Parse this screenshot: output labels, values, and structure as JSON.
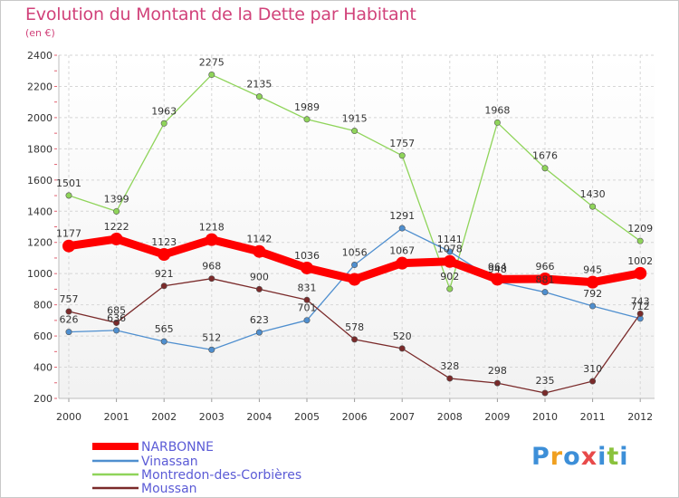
{
  "header": {
    "title": "Evolution du Montant de la Dette par Habitant",
    "subtitle": "(en €)"
  },
  "logo": {
    "text": "Proxiti",
    "letters": [
      "P",
      "r",
      "o",
      "x",
      "i",
      "t",
      "i"
    ],
    "colors": [
      "#3d8fd8",
      "#f0a020",
      "#3d8fd8",
      "#e84a4a",
      "#3d8fd8",
      "#8ac23c",
      "#3d8fd8"
    ]
  },
  "chart_data": {
    "type": "line",
    "title": "Evolution du Montant de la Dette par Habitant",
    "subtitle": "(en €)",
    "xlabel": "",
    "ylabel": "",
    "x": [
      "2000",
      "2001",
      "2002",
      "2003",
      "2004",
      "2005",
      "2006",
      "2007",
      "2008",
      "2009",
      "2010",
      "2011",
      "2012"
    ],
    "ylim": [
      200,
      2400
    ],
    "yticks": [
      200,
      400,
      600,
      800,
      1000,
      1200,
      1400,
      1600,
      1800,
      2000,
      2200,
      2400
    ],
    "grid": true,
    "legend_position": "bottom-left",
    "series": [
      {
        "name": "NARBONNE",
        "color": "#ff0000",
        "values": [
          1177,
          1222,
          1123,
          1218,
          1142,
          1036,
          963,
          1067,
          1078,
          964,
          966,
          945,
          1002
        ],
        "labels": [
          "1177",
          "1222",
          "1123",
          "1218",
          "1142",
          "1036",
          "",
          "1067",
          "1078",
          "964",
          "966",
          "945",
          "1002"
        ]
      },
      {
        "name": "Vinassan",
        "color": "#4f8fcf",
        "values": [
          626,
          636,
          565,
          512,
          623,
          701,
          1056,
          1291,
          1141,
          948,
          881,
          792,
          712
        ],
        "labels": [
          "626",
          "636",
          "565",
          "512",
          "623",
          "701",
          "1056",
          "1291",
          "1141",
          "948",
          "881",
          "792",
          "712"
        ]
      },
      {
        "name": "Montredon-des-Corbières",
        "color": "#8fd45a",
        "values": [
          1501,
          1399,
          1963,
          2275,
          2135,
          1989,
          1915,
          1757,
          902,
          1968,
          1676,
          1430,
          1209
        ],
        "labels": [
          "1501",
          "1399",
          "1963",
          "2275",
          "2135",
          "1989",
          "1915",
          "1757",
          "902",
          "1968",
          "1676",
          "1430",
          "1209"
        ]
      },
      {
        "name": "Moussan",
        "color": "#7a2a2a",
        "values": [
          757,
          685,
          921,
          968,
          900,
          831,
          578,
          520,
          328,
          298,
          235,
          310,
          743
        ],
        "labels": [
          "757",
          "685",
          "921",
          "968",
          "900",
          "831",
          "578",
          "520",
          "328",
          "298",
          "235",
          "310",
          "743"
        ]
      }
    ]
  }
}
